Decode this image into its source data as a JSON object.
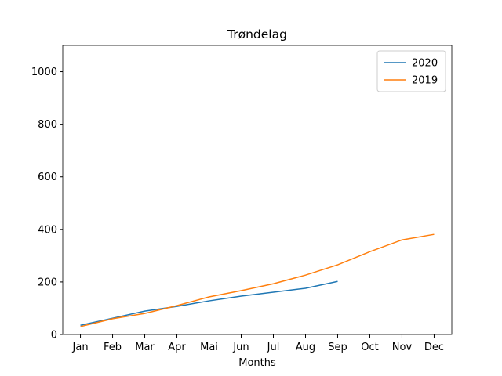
{
  "chart_data": {
    "type": "line",
    "title": "Trøndelag",
    "xlabel": "Months",
    "categories": [
      "Jan",
      "Feb",
      "Mar",
      "Apr",
      "Mai",
      "Jun",
      "Jul",
      "Aug",
      "Sep",
      "Oct",
      "Nov",
      "Dec"
    ],
    "series": [
      {
        "name": "2020",
        "color": "#1f77b4",
        "values": [
          35,
          62,
          89,
          107,
          128,
          146,
          161,
          176,
          202,
          null,
          null,
          null
        ]
      },
      {
        "name": "2019",
        "color": "#ff7f0e",
        "values": [
          30,
          60,
          80,
          110,
          143,
          167,
          193,
          226,
          265,
          315,
          360,
          381
        ]
      }
    ],
    "ylim": [
      0,
      1100
    ],
    "yticks": [
      0,
      200,
      400,
      600,
      800,
      1000
    ],
    "grid": false,
    "legend": "upper right"
  }
}
